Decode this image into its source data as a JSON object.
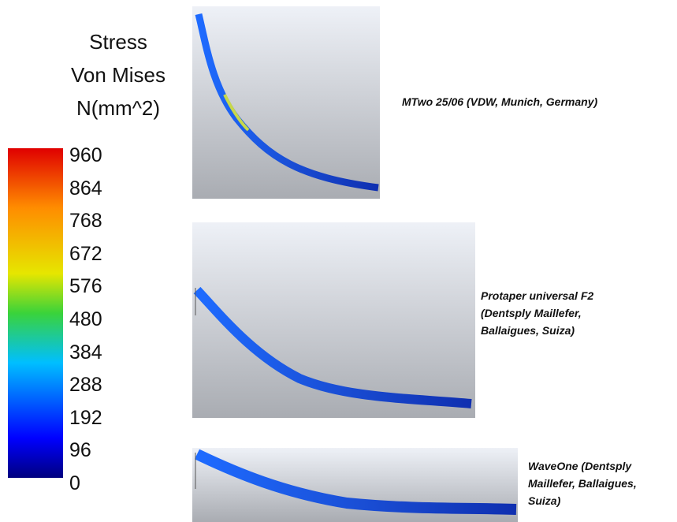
{
  "legend": {
    "title_lines": [
      "Stress",
      "Von Mises",
      "N(mm^2)"
    ],
    "ticks": [
      "960",
      "864",
      "768",
      "672",
      "576",
      "480",
      "384",
      "288",
      "192",
      "96",
      "0"
    ]
  },
  "panels": [
    {
      "caption_lines": [
        "MTwo 25/06 (VDW, Munich, Germany)"
      ]
    },
    {
      "caption_lines": [
        "Protaper universal F2",
        "(Dentsply Maillefer,",
        "Ballaigues, Suiza)"
      ]
    },
    {
      "caption_lines": [
        "WaveOne (Dentsply",
        "Maillefer, Ballaigues,",
        "Suiza)"
      ]
    }
  ]
}
